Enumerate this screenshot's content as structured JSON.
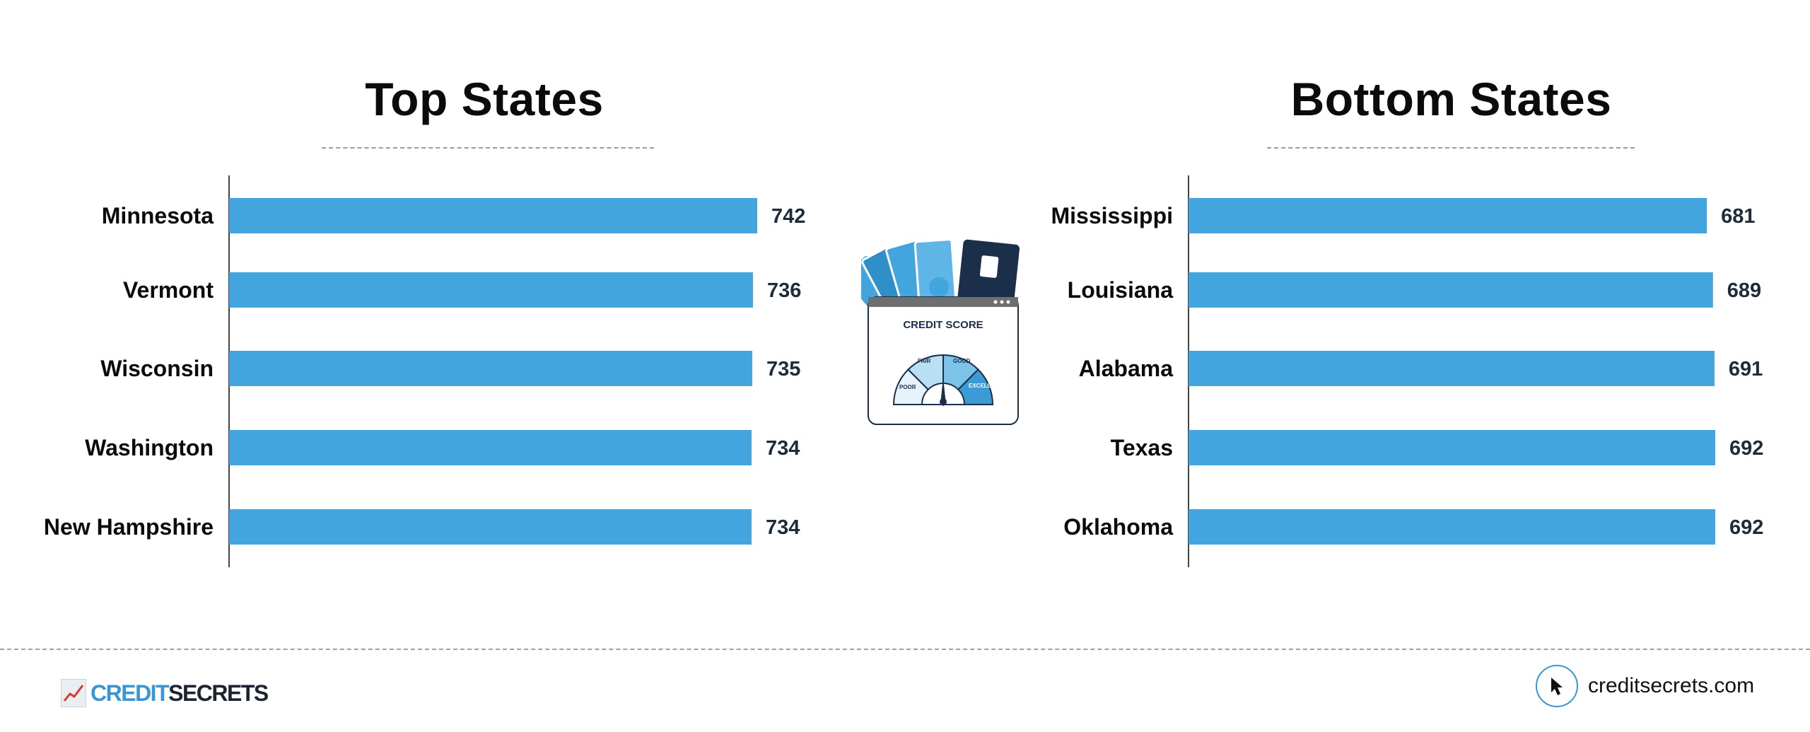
{
  "chart_data": [
    {
      "type": "bar",
      "orientation": "horizontal",
      "title": "Top States",
      "categories": [
        "Minnesota",
        "Vermont",
        "Wisconsin",
        "Washington",
        "New Hampshire"
      ],
      "values": [
        742,
        736,
        735,
        734,
        734
      ],
      "value_labels": [
        "742",
        "736",
        "735",
        "734",
        "734"
      ],
      "color": "#42a5dd"
    },
    {
      "type": "bar",
      "orientation": "horizontal",
      "title": "Bottom States",
      "categories": [
        "Mississippi",
        "Louisiana",
        "Alabama",
        "Texas",
        "Oklahoma"
      ],
      "values": [
        681,
        689,
        691,
        692,
        692
      ],
      "value_labels": [
        "681",
        "689",
        "691",
        "692",
        "692"
      ],
      "color": "#42a5dd"
    }
  ],
  "illustration": {
    "title": "CREDIT SCORE",
    "gauge_labels": [
      "POOR",
      "FAIR",
      "GOOD",
      "EXCELLENT"
    ],
    "icons": [
      "money-fan-icon",
      "credit-card-icon",
      "gauge-icon"
    ]
  },
  "footer": {
    "logo_credit": "CREDIT",
    "logo_secrets": "SECRETS",
    "site_url": "creditsecrets.com",
    "accent_color": "#3a97d4"
  }
}
